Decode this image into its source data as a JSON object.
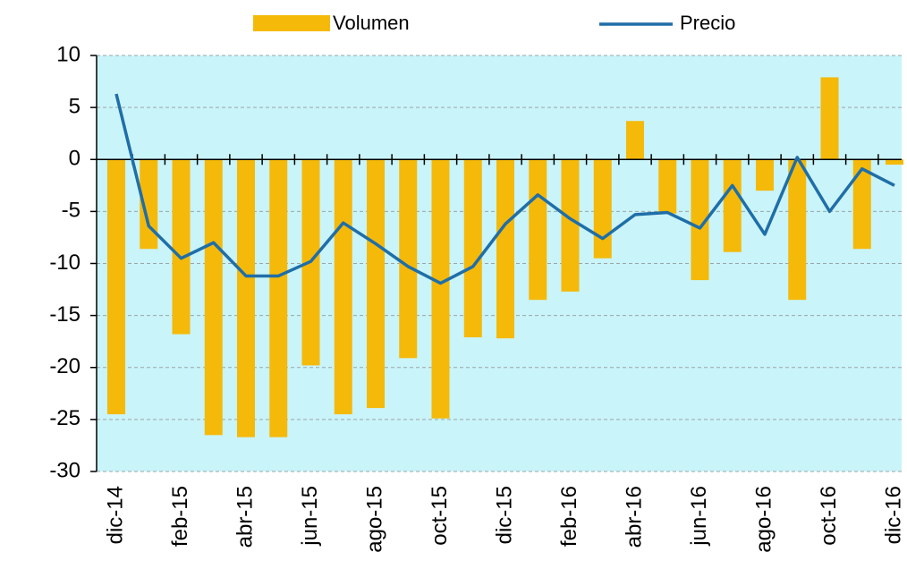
{
  "chart_data": {
    "type": "bar-line",
    "categories": [
      "dic-14",
      null,
      "feb-15",
      null,
      "abr-15",
      null,
      "jun-15",
      null,
      "ago-15",
      null,
      "oct-15",
      null,
      "dic-15",
      null,
      "feb-16",
      null,
      "abr-16",
      null,
      "jun-16",
      null,
      "ago-16",
      null,
      "oct-16",
      null,
      "dic-16"
    ],
    "series": [
      {
        "name": "Volumen",
        "type": "bar",
        "color": "#f5b90a",
        "values": [
          -24.5,
          -8.6,
          -16.8,
          -26.5,
          -26.7,
          -26.7,
          -19.8,
          -24.5,
          -23.9,
          -19.1,
          -24.9,
          -17.1,
          -17.2,
          -13.5,
          -12.7,
          -9.5,
          3.7,
          -5.2,
          -11.6,
          -8.9,
          -3.0,
          -13.5,
          7.9,
          -8.6,
          -0.5
        ]
      },
      {
        "name": "Precio",
        "type": "line",
        "color": "#1f6ea8",
        "values": [
          6.3,
          -6.4,
          -9.5,
          -8.0,
          -11.2,
          -11.2,
          -9.8,
          -6.1,
          -8.1,
          -10.3,
          -11.9,
          -10.3,
          -6.2,
          -3.4,
          -5.7,
          -7.6,
          -5.3,
          -5.1,
          -6.6,
          -2.5,
          -7.2,
          0.2,
          -5.0,
          -0.9,
          -2.5
        ]
      }
    ],
    "ylim": [
      -30,
      10
    ],
    "yticks": [
      -30,
      -25,
      -20,
      -15,
      -10,
      -5,
      0,
      5,
      10
    ],
    "grid": true,
    "legend": "top",
    "background": "#c9f4f9"
  }
}
